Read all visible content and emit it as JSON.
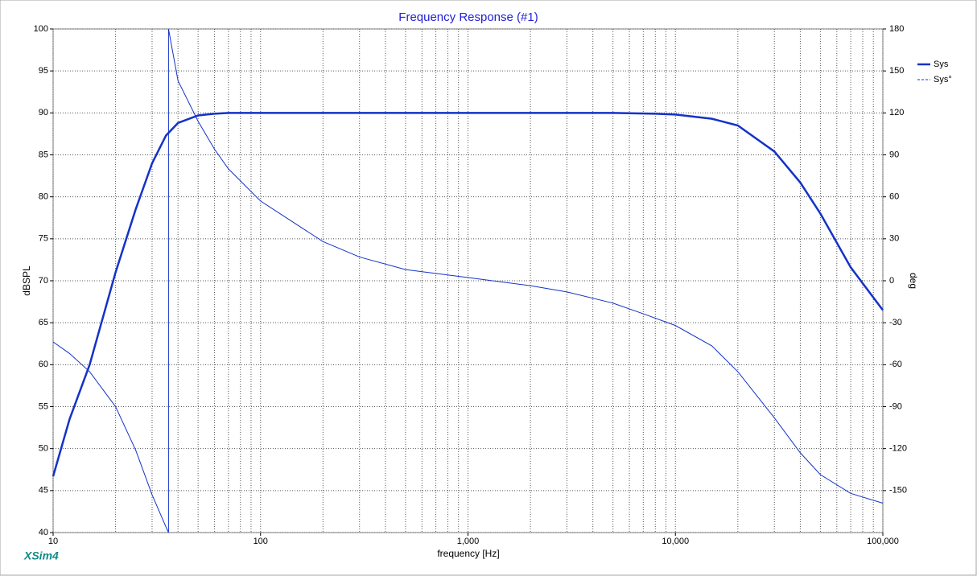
{
  "chart_data": {
    "type": "line",
    "title": "Frequency Response (#1)",
    "x_label": "frequency [Hz]",
    "y_label": "dBSPL",
    "y2_label": "deg",
    "watermark": "XSim4",
    "xscale": "log",
    "xlim": [
      10,
      100000
    ],
    "xticks": [
      10,
      100,
      {
        "value": 1000,
        "label": "1,000"
      },
      {
        "value": 10000,
        "label": "10,000"
      },
      {
        "value": 100000,
        "label": "100,000"
      }
    ],
    "ylim": [
      40,
      100
    ],
    "yticks": [
      40,
      45,
      50,
      55,
      60,
      65,
      70,
      75,
      80,
      85,
      90,
      95,
      100
    ],
    "y2lim": [
      -180,
      180
    ],
    "y2ticks": [
      -150,
      -120,
      -90,
      -60,
      -30,
      0,
      30,
      60,
      90,
      120,
      150,
      180
    ],
    "grid": true,
    "legend": "top-right",
    "series": [
      {
        "name": "Sys",
        "color": "#1432c8",
        "width": 2.5,
        "dashed": false,
        "x": [
          10,
          12,
          15,
          20,
          25,
          30,
          35,
          40,
          50,
          60,
          70,
          100,
          1000,
          5000,
          8000,
          10000,
          15000,
          20000,
          30000,
          40000,
          50000,
          70000,
          100000
        ],
        "values": [
          46.7,
          53.5,
          60,
          71,
          78.5,
          84,
          87.3,
          88.8,
          89.7,
          89.9,
          90,
          90,
          90,
          90,
          89.9,
          89.8,
          89.3,
          88.5,
          85.4,
          81.7,
          78,
          71.6,
          66.5
        ]
      },
      {
        "name": "Sys°",
        "color": "#1432c8",
        "width": 1,
        "dashed": true,
        "axis": "y2",
        "x": [
          10,
          12,
          15,
          20,
          25,
          30,
          35,
          36,
          36,
          40,
          50,
          60,
          70,
          100,
          200,
          300,
          500,
          1000,
          2000,
          3000,
          5000,
          7000,
          10000,
          15000,
          20000,
          30000,
          40000,
          50000,
          70000,
          100000
        ],
        "values": [
          -43.7,
          -52,
          -65,
          -90,
          -121,
          -153,
          -176,
          -180,
          180,
          143,
          114,
          94,
          80,
          57,
          28,
          17,
          8,
          2.3,
          -3.5,
          -8,
          -16,
          -23.6,
          -32,
          -46.6,
          -65,
          -98,
          -123,
          -138.6,
          -152,
          -159
        ]
      }
    ]
  }
}
